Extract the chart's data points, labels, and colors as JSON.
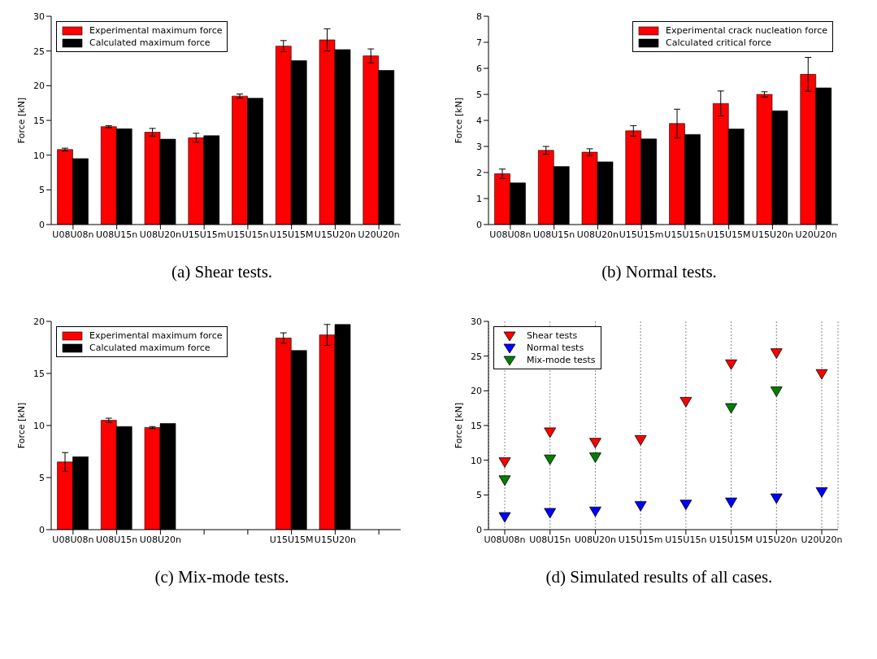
{
  "chart_data": [
    {
      "type": "bar",
      "title": "(a) Shear tests.",
      "ylabel": "Force [kN]",
      "categories": [
        "U08U08n",
        "U08U15n",
        "U08U20n",
        "U15U15m",
        "U15U15n",
        "U15U15M",
        "U15U20n",
        "U20U20n"
      ],
      "series": [
        {
          "name": "Experimental maximum force",
          "color": "#ff0000",
          "values": [
            10.8,
            14.1,
            13.3,
            12.5,
            18.5,
            25.7,
            26.6,
            24.3
          ],
          "errors": [
            0.2,
            0.15,
            0.55,
            0.65,
            0.3,
            0.8,
            1.6,
            1.0
          ]
        },
        {
          "name": "Calculated maximum force",
          "color": "#000000",
          "values": [
            9.5,
            13.8,
            12.3,
            12.8,
            18.2,
            23.6,
            25.2,
            22.2
          ]
        }
      ],
      "ylim": [
        0,
        30
      ],
      "yticks": [
        0,
        5,
        10,
        15,
        20,
        25,
        30
      ],
      "legend": "top left"
    },
    {
      "type": "bar",
      "title": "(b) Normal tests.",
      "ylabel": "Force [kN]",
      "categories": [
        "U08U08n",
        "U08U15n",
        "U08U20n",
        "U15U15m",
        "U15U15n",
        "U15U15M",
        "U15U20n",
        "U20U20n"
      ],
      "series": [
        {
          "name": "Experimental crack nucleation force",
          "color": "#ff0000",
          "values": [
            1.95,
            2.85,
            2.78,
            3.6,
            3.88,
            4.65,
            5.0,
            5.77
          ],
          "errors": [
            0.18,
            0.15,
            0.13,
            0.2,
            0.55,
            0.48,
            0.1,
            0.65
          ]
        },
        {
          "name": "Calculated critical force",
          "color": "#000000",
          "values": [
            1.6,
            2.23,
            2.41,
            3.29,
            3.46,
            3.67,
            4.37,
            5.25
          ]
        }
      ],
      "ylim": [
        0,
        8
      ],
      "yticks": [
        0,
        1,
        2,
        3,
        4,
        5,
        6,
        7,
        8
      ],
      "legend": "top right"
    },
    {
      "type": "bar",
      "title": "(c) Mix-mode tests.",
      "ylabel": "Force [kN]",
      "categories": [
        "U08U08n",
        "U08U15n",
        "U08U20n",
        null,
        null,
        "U15U15M",
        "U15U20n",
        null
      ],
      "series": [
        {
          "name": "Experimental maximum force",
          "color": "#ff0000",
          "values": [
            6.5,
            10.5,
            9.8,
            null,
            null,
            18.4,
            18.7,
            null
          ],
          "errors": [
            0.9,
            0.2,
            0.1,
            null,
            null,
            0.5,
            1.0,
            null
          ]
        },
        {
          "name": "Calculated maximum force",
          "color": "#000000",
          "values": [
            7.0,
            9.9,
            10.2,
            null,
            null,
            17.2,
            19.7,
            null
          ]
        }
      ],
      "ylim": [
        0,
        20
      ],
      "yticks": [
        0,
        5,
        10,
        15,
        20
      ],
      "legend": "top left"
    },
    {
      "type": "scatter",
      "title": "(d) Simulated results of all cases.",
      "ylabel": "Force [kN]",
      "categories": [
        "U08U08n",
        "U08U15n",
        "U08U20n",
        "U15U15m",
        "U15U15n",
        "U15U15M",
        "U15U20n",
        "U20U20n"
      ],
      "series": [
        {
          "name": "Shear tests",
          "color": "#ff0000",
          "values": [
            9.7,
            14.0,
            12.5,
            12.9,
            18.4,
            23.8,
            25.4,
            22.4
          ]
        },
        {
          "name": "Normal tests",
          "color": "#0000ff",
          "values": [
            1.8,
            2.4,
            2.6,
            3.4,
            3.6,
            3.9,
            4.5,
            5.4
          ]
        },
        {
          "name": "Mix-mode tests",
          "color": "#007f00",
          "values": [
            7.1,
            10.1,
            10.4,
            null,
            null,
            17.5,
            19.9,
            null
          ]
        }
      ],
      "ylim": [
        0,
        30
      ],
      "yticks": [
        0,
        5,
        10,
        15,
        20,
        25,
        30
      ],
      "marker": "triangle",
      "grid": "x",
      "legend": "top left"
    }
  ]
}
